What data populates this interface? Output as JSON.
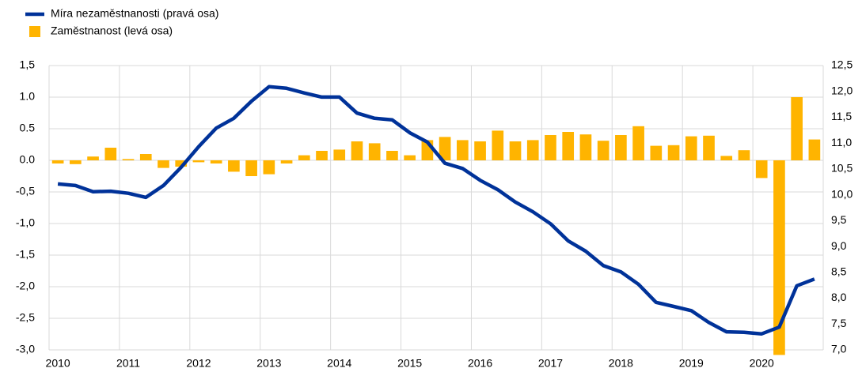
{
  "chart_data": {
    "type": "bar-line",
    "categories": [
      "2010",
      null,
      null,
      null,
      "2011",
      null,
      null,
      null,
      "2012",
      null,
      null,
      null,
      "2013",
      null,
      null,
      null,
      "2014",
      null,
      null,
      null,
      "2015",
      null,
      null,
      null,
      "2016",
      null,
      null,
      null,
      "2017",
      null,
      null,
      null,
      "2018",
      null,
      null,
      null,
      "2019",
      null,
      null,
      null,
      "2020",
      null,
      null,
      null
    ],
    "series": [
      {
        "name": "Míra nezaměstnanosti (pravá osa)",
        "color": "#003299",
        "type": "line",
        "axis": "y2",
        "values": [
          10.21,
          10.18,
          10.06,
          10.07,
          10.03,
          9.95,
          10.18,
          10.53,
          10.93,
          11.29,
          11.48,
          11.81,
          12.09,
          12.06,
          11.97,
          11.89,
          11.89,
          11.58,
          11.48,
          11.45,
          11.2,
          11.02,
          10.61,
          10.51,
          10.28,
          10.1,
          9.86,
          9.67,
          9.44,
          9.11,
          8.91,
          8.63,
          8.51,
          8.27,
          7.92,
          7.84,
          7.76,
          7.53,
          7.35,
          7.34,
          7.31,
          7.44,
          8.24,
          8.37
        ]
      },
      {
        "name": "Zaměstnanost (levá osa)",
        "color": "#ffb400",
        "type": "bar",
        "axis": "y",
        "values": [
          -0.05,
          -0.06,
          0.06,
          0.2,
          0.02,
          0.1,
          -0.12,
          -0.1,
          -0.03,
          -0.05,
          -0.18,
          -0.25,
          -0.22,
          -0.05,
          0.08,
          0.15,
          0.17,
          0.3,
          0.27,
          0.15,
          0.08,
          0.32,
          0.37,
          0.32,
          0.3,
          0.47,
          0.3,
          0.32,
          0.4,
          0.45,
          0.41,
          0.31,
          0.4,
          0.54,
          0.23,
          0.24,
          0.38,
          0.39,
          0.07,
          0.16,
          -0.28,
          -3.08,
          1.0,
          0.33
        ]
      }
    ],
    "ylim": [
      -3.0,
      1.5
    ],
    "yticks": [
      {
        "value": 1.5,
        "label": "1,5"
      },
      {
        "value": 1.0,
        "label": "1.0"
      },
      {
        "value": 0.5,
        "label": "0.5"
      },
      {
        "value": 0.0,
        "label": "0.0"
      },
      {
        "value": -0.5,
        "label": "-0,5"
      },
      {
        "value": -1.0,
        "label": "-1,0"
      },
      {
        "value": -1.5,
        "label": "-1,5"
      },
      {
        "value": -2.0,
        "label": "-2,0"
      },
      {
        "value": -2.5,
        "label": "-2,5"
      },
      {
        "value": -3.0,
        "label": "-3,0"
      }
    ],
    "y2lim": [
      7.0,
      12.5
    ],
    "y2ticks": [
      {
        "value": 12.5,
        "label": "12,5"
      },
      {
        "value": 12.0,
        "label": "12,0"
      },
      {
        "value": 11.5,
        "label": "11,5"
      },
      {
        "value": 11.0,
        "label": "11,0"
      },
      {
        "value": 10.5,
        "label": "10,5"
      },
      {
        "value": 10.0,
        "label": "10,0"
      },
      {
        "value": 9.5,
        "label": "9,5"
      },
      {
        "value": 9.0,
        "label": "9,0"
      },
      {
        "value": 8.5,
        "label": "8,5"
      },
      {
        "value": 8.0,
        "label": "8,0"
      },
      {
        "value": 7.5,
        "label": "7,5"
      },
      {
        "value": 7.0,
        "label": "7,0"
      }
    ],
    "grid": true,
    "legend": "top-left"
  }
}
